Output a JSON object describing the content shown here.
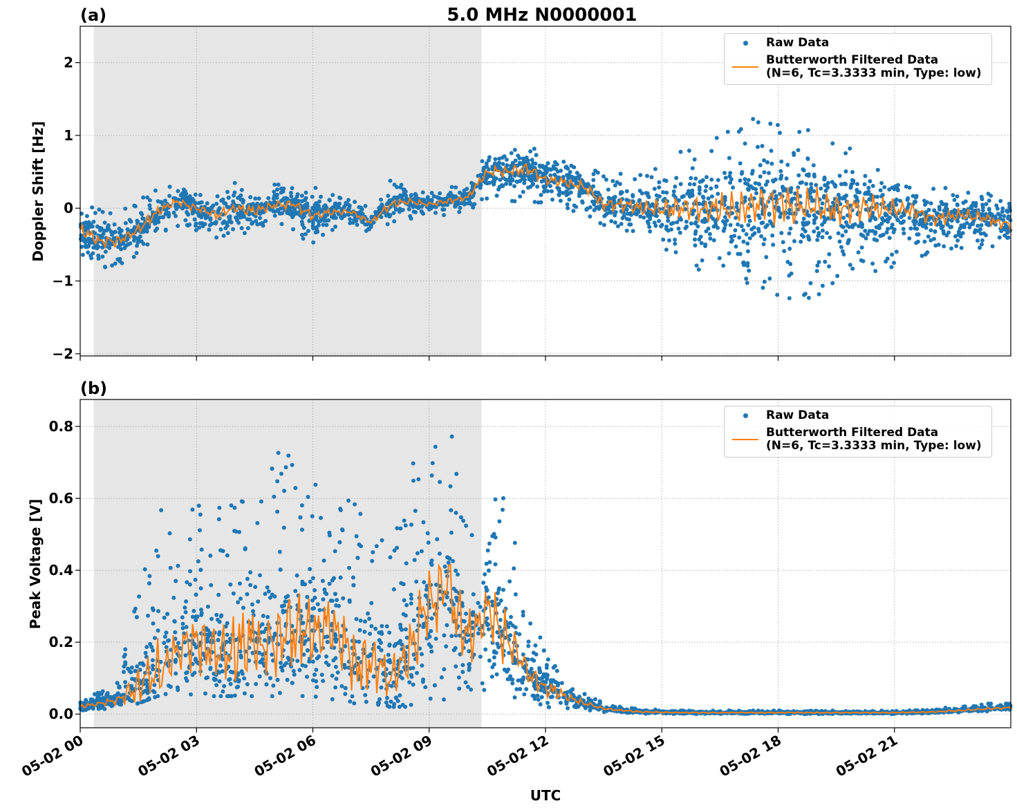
{
  "title": "5.0 MHz N0000001",
  "xlabel": "UTC",
  "colors": {
    "raw": "#1f77b4",
    "filtered": "#ff7f0e",
    "shade": "#e6e6e6"
  },
  "legend": {
    "raw": "Raw Data",
    "filtered_line1": "Butterworth Filtered Data",
    "filtered_line2": "(N=6, Tc=3.3333 min, Type: low)"
  },
  "chart_data": [
    {
      "type": "scatter+line",
      "panel_label": "(a)",
      "ylabel": "Doppler Shift [Hz]",
      "xlim": [
        "05-02 00:00",
        "05-03 00:00"
      ],
      "ylim": [
        -2.03,
        2.5
      ],
      "grid": true,
      "legend_position": "top-right",
      "shaded_span": [
        "05-02 00:21",
        "05-02 10:21"
      ],
      "x_ticks": [
        "05-02 00",
        "05-02 03",
        "05-02 06",
        "05-02 09",
        "05-02 12",
        "05-02 15",
        "05-02 18",
        "05-02 21"
      ],
      "y_ticks": [
        "−2",
        "−1",
        "0",
        "1",
        "2"
      ],
      "y_tick_values": [
        -2,
        -1,
        0,
        1,
        2
      ],
      "x_step_minutes": 30,
      "x_start": "05-02 00:00",
      "series": [
        {
          "name": "Butterworth Filtered Data",
          "values": [
            -0.3,
            -0.45,
            -0.45,
            -0.3,
            -0.05,
            0.1,
            0.0,
            -0.1,
            0.0,
            -0.05,
            0.05,
            0.05,
            -0.1,
            -0.05,
            -0.05,
            -0.2,
            0.05,
            0.1,
            0.05,
            0.1,
            0.15,
            0.5,
            0.5,
            0.55,
            0.4,
            0.35,
            0.3,
            0.05,
            0.05,
            0.0,
            0.0,
            0.0,
            0.0,
            0.0,
            0.0,
            0.05,
            0.05,
            0.0,
            0.05,
            0.0,
            0.0,
            0.0,
            0.0,
            -0.05,
            -0.15,
            -0.1,
            -0.1,
            -0.15,
            -0.25
          ]
        },
        {
          "name": "Raw Data",
          "lower": [
            -0.7,
            -0.85,
            -0.85,
            -0.65,
            -0.4,
            -0.25,
            -0.35,
            -0.45,
            -0.35,
            -0.35,
            -0.25,
            -0.3,
            -0.55,
            -0.3,
            -0.2,
            -0.35,
            -0.2,
            -0.15,
            -0.1,
            -0.1,
            -0.05,
            0.1,
            0.1,
            0.05,
            0.0,
            0.0,
            -0.1,
            -0.25,
            -0.4,
            -0.5,
            -0.6,
            -0.7,
            -0.9,
            -1.0,
            -1.1,
            -1.2,
            -1.3,
            -1.3,
            -1.2,
            -1.1,
            -1.0,
            -0.9,
            -0.8,
            -0.7,
            -0.6,
            -0.6,
            -0.55,
            -0.55,
            -0.6
          ],
          "upper": [
            0.05,
            0.0,
            -0.05,
            0.1,
            0.3,
            0.3,
            0.2,
            0.3,
            0.35,
            0.3,
            0.35,
            0.35,
            0.3,
            0.2,
            0.1,
            0.05,
            0.4,
            0.3,
            0.25,
            0.3,
            0.3,
            0.8,
            0.8,
            0.9,
            0.75,
            0.7,
            0.6,
            0.5,
            0.5,
            0.5,
            0.6,
            0.8,
            0.9,
            1.0,
            1.2,
            1.3,
            1.3,
            1.2,
            1.0,
            0.9,
            0.8,
            0.7,
            0.5,
            0.4,
            0.3,
            0.3,
            0.2,
            0.2,
            0.1
          ]
        }
      ]
    },
    {
      "type": "scatter+line",
      "panel_label": "(b)",
      "ylabel": "Peak Voltage [V]",
      "xlim": [
        "05-02 00:00",
        "05-03 00:00"
      ],
      "ylim": [
        -0.038,
        0.875
      ],
      "grid": true,
      "legend_position": "top-right",
      "shaded_span": [
        "05-02 00:21",
        "05-02 10:21"
      ],
      "x_ticks": [
        "05-02 00",
        "05-02 03",
        "05-02 06",
        "05-02 09",
        "05-02 12",
        "05-02 15",
        "05-02 18",
        "05-02 21"
      ],
      "y_ticks": [
        "0.0",
        "0.2",
        "0.4",
        "0.6",
        "0.8"
      ],
      "y_tick_values": [
        0,
        0.2,
        0.4,
        0.6,
        0.8
      ],
      "x_step_minutes": 30,
      "x_start": "05-02 00:00",
      "series": [
        {
          "name": "Butterworth Filtered Data",
          "values": [
            0.02,
            0.03,
            0.04,
            0.08,
            0.12,
            0.18,
            0.2,
            0.17,
            0.17,
            0.2,
            0.18,
            0.25,
            0.22,
            0.25,
            0.15,
            0.15,
            0.1,
            0.18,
            0.3,
            0.35,
            0.2,
            0.3,
            0.2,
            0.12,
            0.07,
            0.05,
            0.03,
            0.015,
            0.01,
            0.006,
            0.005,
            0.004,
            0.004,
            0.004,
            0.004,
            0.004,
            0.004,
            0.004,
            0.004,
            0.004,
            0.004,
            0.004,
            0.004,
            0.005,
            0.006,
            0.009,
            0.012,
            0.015,
            0.018
          ]
        },
        {
          "name": "Raw Data",
          "lower": [
            0.005,
            0.01,
            0.015,
            0.03,
            0.05,
            0.06,
            0.05,
            0.05,
            0.05,
            0.05,
            0.05,
            0.05,
            0.05,
            0.04,
            0.03,
            0.03,
            0.02,
            0.02,
            0.02,
            0.03,
            0.04,
            0.05,
            0.04,
            0.03,
            0.02,
            0.015,
            0.01,
            0.005,
            0.002,
            0.001,
            0.001,
            0,
            0,
            0,
            0,
            0,
            0,
            0,
            0,
            0,
            0,
            0,
            0,
            0.001,
            0.002,
            0.004,
            0.006,
            0.008,
            0.01
          ],
          "upper": [
            0.05,
            0.06,
            0.1,
            0.35,
            0.6,
            0.45,
            0.6,
            0.55,
            0.7,
            0.6,
            0.75,
            0.78,
            0.65,
            0.6,
            0.6,
            0.55,
            0.45,
            0.7,
            0.75,
            0.83,
            0.6,
            0.7,
            0.65,
            0.3,
            0.2,
            0.1,
            0.06,
            0.03,
            0.02,
            0.015,
            0.012,
            0.01,
            0.01,
            0.01,
            0.01,
            0.01,
            0.01,
            0.01,
            0.01,
            0.01,
            0.01,
            0.01,
            0.01,
            0.012,
            0.015,
            0.02,
            0.025,
            0.03,
            0.03
          ]
        }
      ]
    }
  ]
}
